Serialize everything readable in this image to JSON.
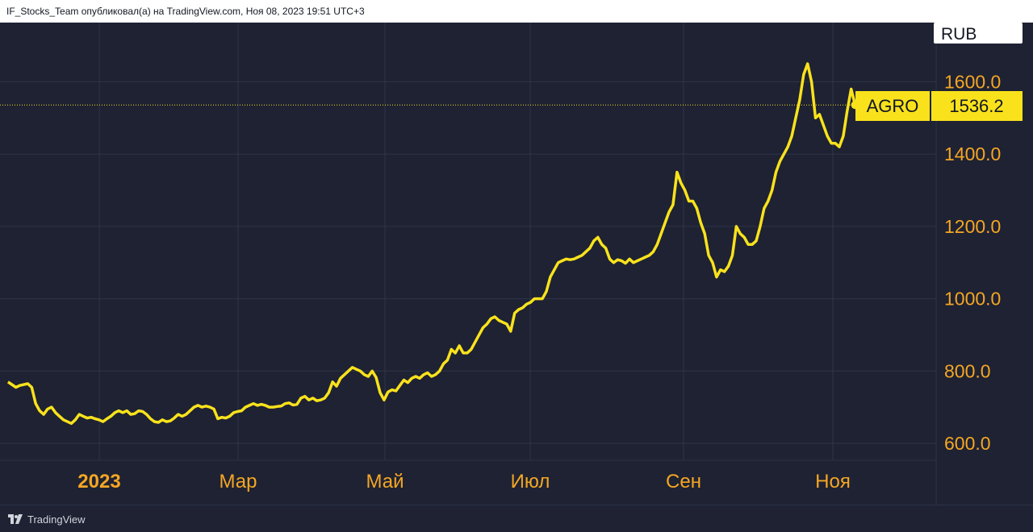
{
  "header": {
    "caption": "IF_Stocks_Team опубликовал(а) на TradingView.com, Ноя 08, 2023 19:51 UTC+3"
  },
  "footer": {
    "brand": "TradingView"
  },
  "colors": {
    "background": "#1e2233",
    "line": "#f9e21c",
    "axis_text": "#f5a623",
    "grid": "#2f3447"
  },
  "chart_data": {
    "type": "line",
    "currency": "RUB",
    "symbol": "AGRO",
    "last_value": "1536.2",
    "y_ticks": [
      "600.0",
      "800.0",
      "1000.0",
      "1200.0",
      "1400.0",
      "1600.0"
    ],
    "ylim": [
      553,
      1748
    ],
    "x_tick_labels": [
      "2023",
      "Мар",
      "Май",
      "Июл",
      "Сен",
      "Ноя"
    ],
    "grid": true,
    "series": [
      {
        "values": [
          [
            1,
            770
          ],
          [
            3,
            755
          ],
          [
            4,
            760
          ],
          [
            6,
            765
          ],
          [
            7,
            755
          ],
          [
            8,
            710
          ],
          [
            9,
            690
          ],
          [
            10,
            680
          ],
          [
            11,
            695
          ],
          [
            12,
            700
          ],
          [
            13,
            685
          ],
          [
            14,
            675
          ],
          [
            15,
            665
          ],
          [
            16,
            660
          ],
          [
            17,
            655
          ],
          [
            18,
            665
          ],
          [
            19,
            680
          ],
          [
            20,
            675
          ],
          [
            21,
            670
          ],
          [
            22,
            672
          ],
          [
            23,
            668
          ],
          [
            24,
            665
          ],
          [
            25,
            660
          ],
          [
            26,
            668
          ],
          [
            27,
            675
          ],
          [
            28,
            685
          ],
          [
            29,
            690
          ],
          [
            30,
            685
          ],
          [
            31,
            690
          ],
          [
            32,
            680
          ],
          [
            33,
            682
          ],
          [
            34,
            690
          ],
          [
            35,
            688
          ],
          [
            36,
            680
          ],
          [
            37,
            668
          ],
          [
            38,
            660
          ],
          [
            39,
            658
          ],
          [
            40,
            665
          ],
          [
            41,
            660
          ],
          [
            42,
            662
          ],
          [
            43,
            670
          ],
          [
            44,
            680
          ],
          [
            45,
            675
          ],
          [
            46,
            680
          ],
          [
            47,
            690
          ],
          [
            48,
            700
          ],
          [
            49,
            705
          ],
          [
            50,
            700
          ],
          [
            51,
            703
          ],
          [
            52,
            700
          ],
          [
            53,
            695
          ],
          [
            54,
            668
          ],
          [
            55,
            672
          ],
          [
            56,
            670
          ],
          [
            57,
            675
          ],
          [
            58,
            685
          ],
          [
            59,
            688
          ],
          [
            60,
            690
          ],
          [
            61,
            700
          ],
          [
            62,
            705
          ],
          [
            63,
            710
          ],
          [
            64,
            705
          ],
          [
            65,
            708
          ],
          [
            66,
            705
          ],
          [
            67,
            700
          ],
          [
            68,
            700
          ],
          [
            69,
            702
          ],
          [
            70,
            703
          ],
          [
            71,
            710
          ],
          [
            72,
            712
          ],
          [
            73,
            706
          ],
          [
            74,
            708
          ],
          [
            75,
            725
          ],
          [
            76,
            730
          ],
          [
            77,
            720
          ],
          [
            78,
            725
          ],
          [
            79,
            718
          ],
          [
            80,
            720
          ],
          [
            81,
            725
          ],
          [
            82,
            740
          ],
          [
            83,
            770
          ],
          [
            84,
            758
          ],
          [
            85,
            780
          ],
          [
            86,
            790
          ],
          [
            87,
            800
          ],
          [
            88,
            810
          ],
          [
            89,
            805
          ],
          [
            90,
            800
          ],
          [
            91,
            790
          ],
          [
            92,
            785
          ],
          [
            93,
            800
          ],
          [
            94,
            782
          ],
          [
            95,
            740
          ],
          [
            96,
            720
          ],
          [
            97,
            742
          ],
          [
            98,
            748
          ],
          [
            99,
            745
          ],
          [
            100,
            760
          ],
          [
            101,
            775
          ],
          [
            102,
            768
          ],
          [
            103,
            780
          ],
          [
            104,
            785
          ],
          [
            105,
            780
          ],
          [
            106,
            790
          ],
          [
            107,
            795
          ],
          [
            108,
            785
          ],
          [
            109,
            790
          ],
          [
            110,
            800
          ],
          [
            111,
            820
          ],
          [
            112,
            830
          ],
          [
            113,
            860
          ],
          [
            114,
            850
          ],
          [
            115,
            870
          ],
          [
            116,
            850
          ],
          [
            117,
            850
          ],
          [
            118,
            860
          ],
          [
            119,
            880
          ],
          [
            120,
            900
          ],
          [
            121,
            920
          ],
          [
            122,
            930
          ],
          [
            123,
            945
          ],
          [
            124,
            950
          ],
          [
            125,
            940
          ],
          [
            126,
            935
          ],
          [
            127,
            930
          ],
          [
            128,
            910
          ],
          [
            129,
            960
          ],
          [
            130,
            970
          ],
          [
            131,
            975
          ],
          [
            132,
            985
          ],
          [
            133,
            990
          ],
          [
            134,
            1000
          ],
          [
            135,
            1000
          ],
          [
            136,
            1000
          ],
          [
            137,
            1020
          ],
          [
            138,
            1060
          ],
          [
            139,
            1080
          ],
          [
            140,
            1100
          ],
          [
            141,
            1105
          ],
          [
            142,
            1110
          ],
          [
            143,
            1108
          ],
          [
            144,
            1110
          ],
          [
            145,
            1115
          ],
          [
            146,
            1120
          ],
          [
            147,
            1130
          ],
          [
            148,
            1140
          ],
          [
            149,
            1160
          ],
          [
            150,
            1170
          ],
          [
            151,
            1150
          ],
          [
            152,
            1140
          ],
          [
            153,
            1110
          ],
          [
            154,
            1100
          ],
          [
            155,
            1108
          ],
          [
            156,
            1105
          ],
          [
            157,
            1098
          ],
          [
            158,
            1110
          ],
          [
            159,
            1100
          ],
          [
            160,
            1105
          ],
          [
            161,
            1110
          ],
          [
            162,
            1115
          ],
          [
            163,
            1120
          ],
          [
            164,
            1130
          ],
          [
            165,
            1150
          ],
          [
            166,
            1180
          ],
          [
            167,
            1210
          ],
          [
            168,
            1240
          ],
          [
            169,
            1260
          ],
          [
            170,
            1350
          ],
          [
            171,
            1320
          ],
          [
            172,
            1300
          ],
          [
            173,
            1270
          ],
          [
            174,
            1270
          ],
          [
            175,
            1250
          ],
          [
            176,
            1210
          ],
          [
            177,
            1180
          ],
          [
            178,
            1120
          ],
          [
            179,
            1100
          ],
          [
            180,
            1060
          ],
          [
            181,
            1080
          ],
          [
            182,
            1075
          ],
          [
            183,
            1090
          ],
          [
            184,
            1120
          ],
          [
            185,
            1200
          ],
          [
            186,
            1180
          ],
          [
            187,
            1170
          ],
          [
            188,
            1150
          ],
          [
            189,
            1150
          ],
          [
            190,
            1160
          ],
          [
            191,
            1200
          ],
          [
            192,
            1250
          ],
          [
            193,
            1270
          ],
          [
            194,
            1300
          ],
          [
            195,
            1350
          ],
          [
            196,
            1380
          ],
          [
            197,
            1400
          ],
          [
            198,
            1420
          ],
          [
            199,
            1450
          ],
          [
            200,
            1500
          ],
          [
            201,
            1550
          ],
          [
            202,
            1620
          ],
          [
            203,
            1650
          ],
          [
            204,
            1600
          ],
          [
            205,
            1500
          ],
          [
            206,
            1510
          ],
          [
            207,
            1480
          ],
          [
            208,
            1450
          ],
          [
            209,
            1430
          ],
          [
            210,
            1430
          ],
          [
            211,
            1420
          ],
          [
            212,
            1450
          ],
          [
            213,
            1520
          ],
          [
            214,
            1580
          ],
          [
            215,
            1536
          ]
        ]
      }
    ]
  }
}
